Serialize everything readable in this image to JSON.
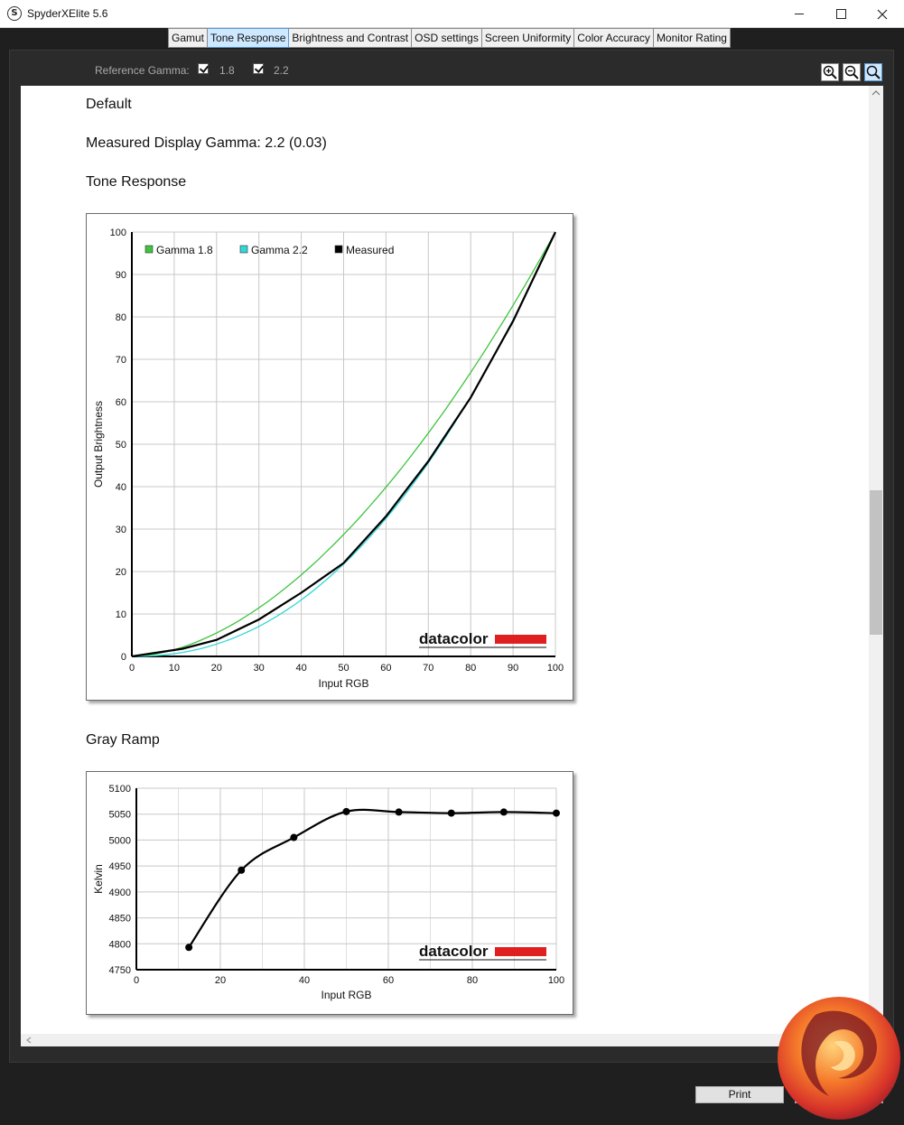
{
  "window": {
    "title": "SpyderXElite 5.6",
    "icon": "S"
  },
  "tabs": [
    {
      "label": "Gamut",
      "active": false
    },
    {
      "label": "Tone Response",
      "active": true
    },
    {
      "label": "Brightness and Contrast",
      "active": false
    },
    {
      "label": "OSD settings",
      "active": false
    },
    {
      "label": "Screen Uniformity",
      "active": false
    },
    {
      "label": "Color Accuracy",
      "active": false
    },
    {
      "label": "Monitor Rating",
      "active": false
    }
  ],
  "toolbar": {
    "reference_label": "Reference Gamma:",
    "gamma_options": [
      {
        "label": "1.8",
        "checked": true
      },
      {
        "label": "2.2",
        "checked": true
      }
    ],
    "zoom_icons": [
      "zoom-in-icon",
      "zoom-out-icon",
      "zoom-fit-icon"
    ]
  },
  "content": {
    "profile_name": "Default",
    "measured_gamma": "Measured Display Gamma: 2.2 (0.03)",
    "tone_section": "Tone Response",
    "gray_section": "Gray Ramp"
  },
  "brand_watermark": "datacolor",
  "print_label": "Print",
  "chart_data": [
    {
      "type": "line",
      "xlabel": "Input RGB",
      "ylabel": "Output Brightness",
      "xlim": [
        0,
        100
      ],
      "ylim": [
        0,
        100
      ],
      "xticks": [
        0,
        10,
        20,
        30,
        40,
        50,
        60,
        70,
        80,
        90,
        100
      ],
      "yticks": [
        0,
        10,
        20,
        30,
        40,
        50,
        60,
        70,
        80,
        90,
        100
      ],
      "grid": true,
      "legend": "top-left",
      "series": [
        {
          "name": "Gamma 1.8",
          "color": "#3ec43e",
          "gamma": 1.8
        },
        {
          "name": "Gamma 2.2",
          "color": "#33d6d6",
          "gamma": 2.2
        },
        {
          "name": "Measured",
          "color": "#000000",
          "x": [
            0,
            12,
            20,
            30,
            40,
            50,
            60,
            70,
            80,
            90,
            100
          ],
          "y": [
            0,
            1.8,
            3.9,
            8.7,
            15,
            22,
            33,
            46,
            61,
            79,
            100
          ]
        }
      ]
    },
    {
      "type": "line",
      "xlabel": "Input RGB",
      "ylabel": "Kelvin",
      "xlim": [
        0,
        100
      ],
      "ylim": [
        4750,
        5100
      ],
      "xticks": [
        0,
        20,
        40,
        60,
        80,
        100
      ],
      "yticks": [
        4750,
        4800,
        4850,
        4900,
        4950,
        5000,
        5050,
        5100
      ],
      "grid": true,
      "series": [
        {
          "color": "#000000",
          "x": [
            12.5,
            25,
            37.5,
            50,
            62.5,
            75,
            87.5,
            100
          ],
          "y": [
            4793,
            4942,
            5005,
            5055,
            5054,
            5052,
            5054,
            5052
          ]
        }
      ]
    }
  ]
}
